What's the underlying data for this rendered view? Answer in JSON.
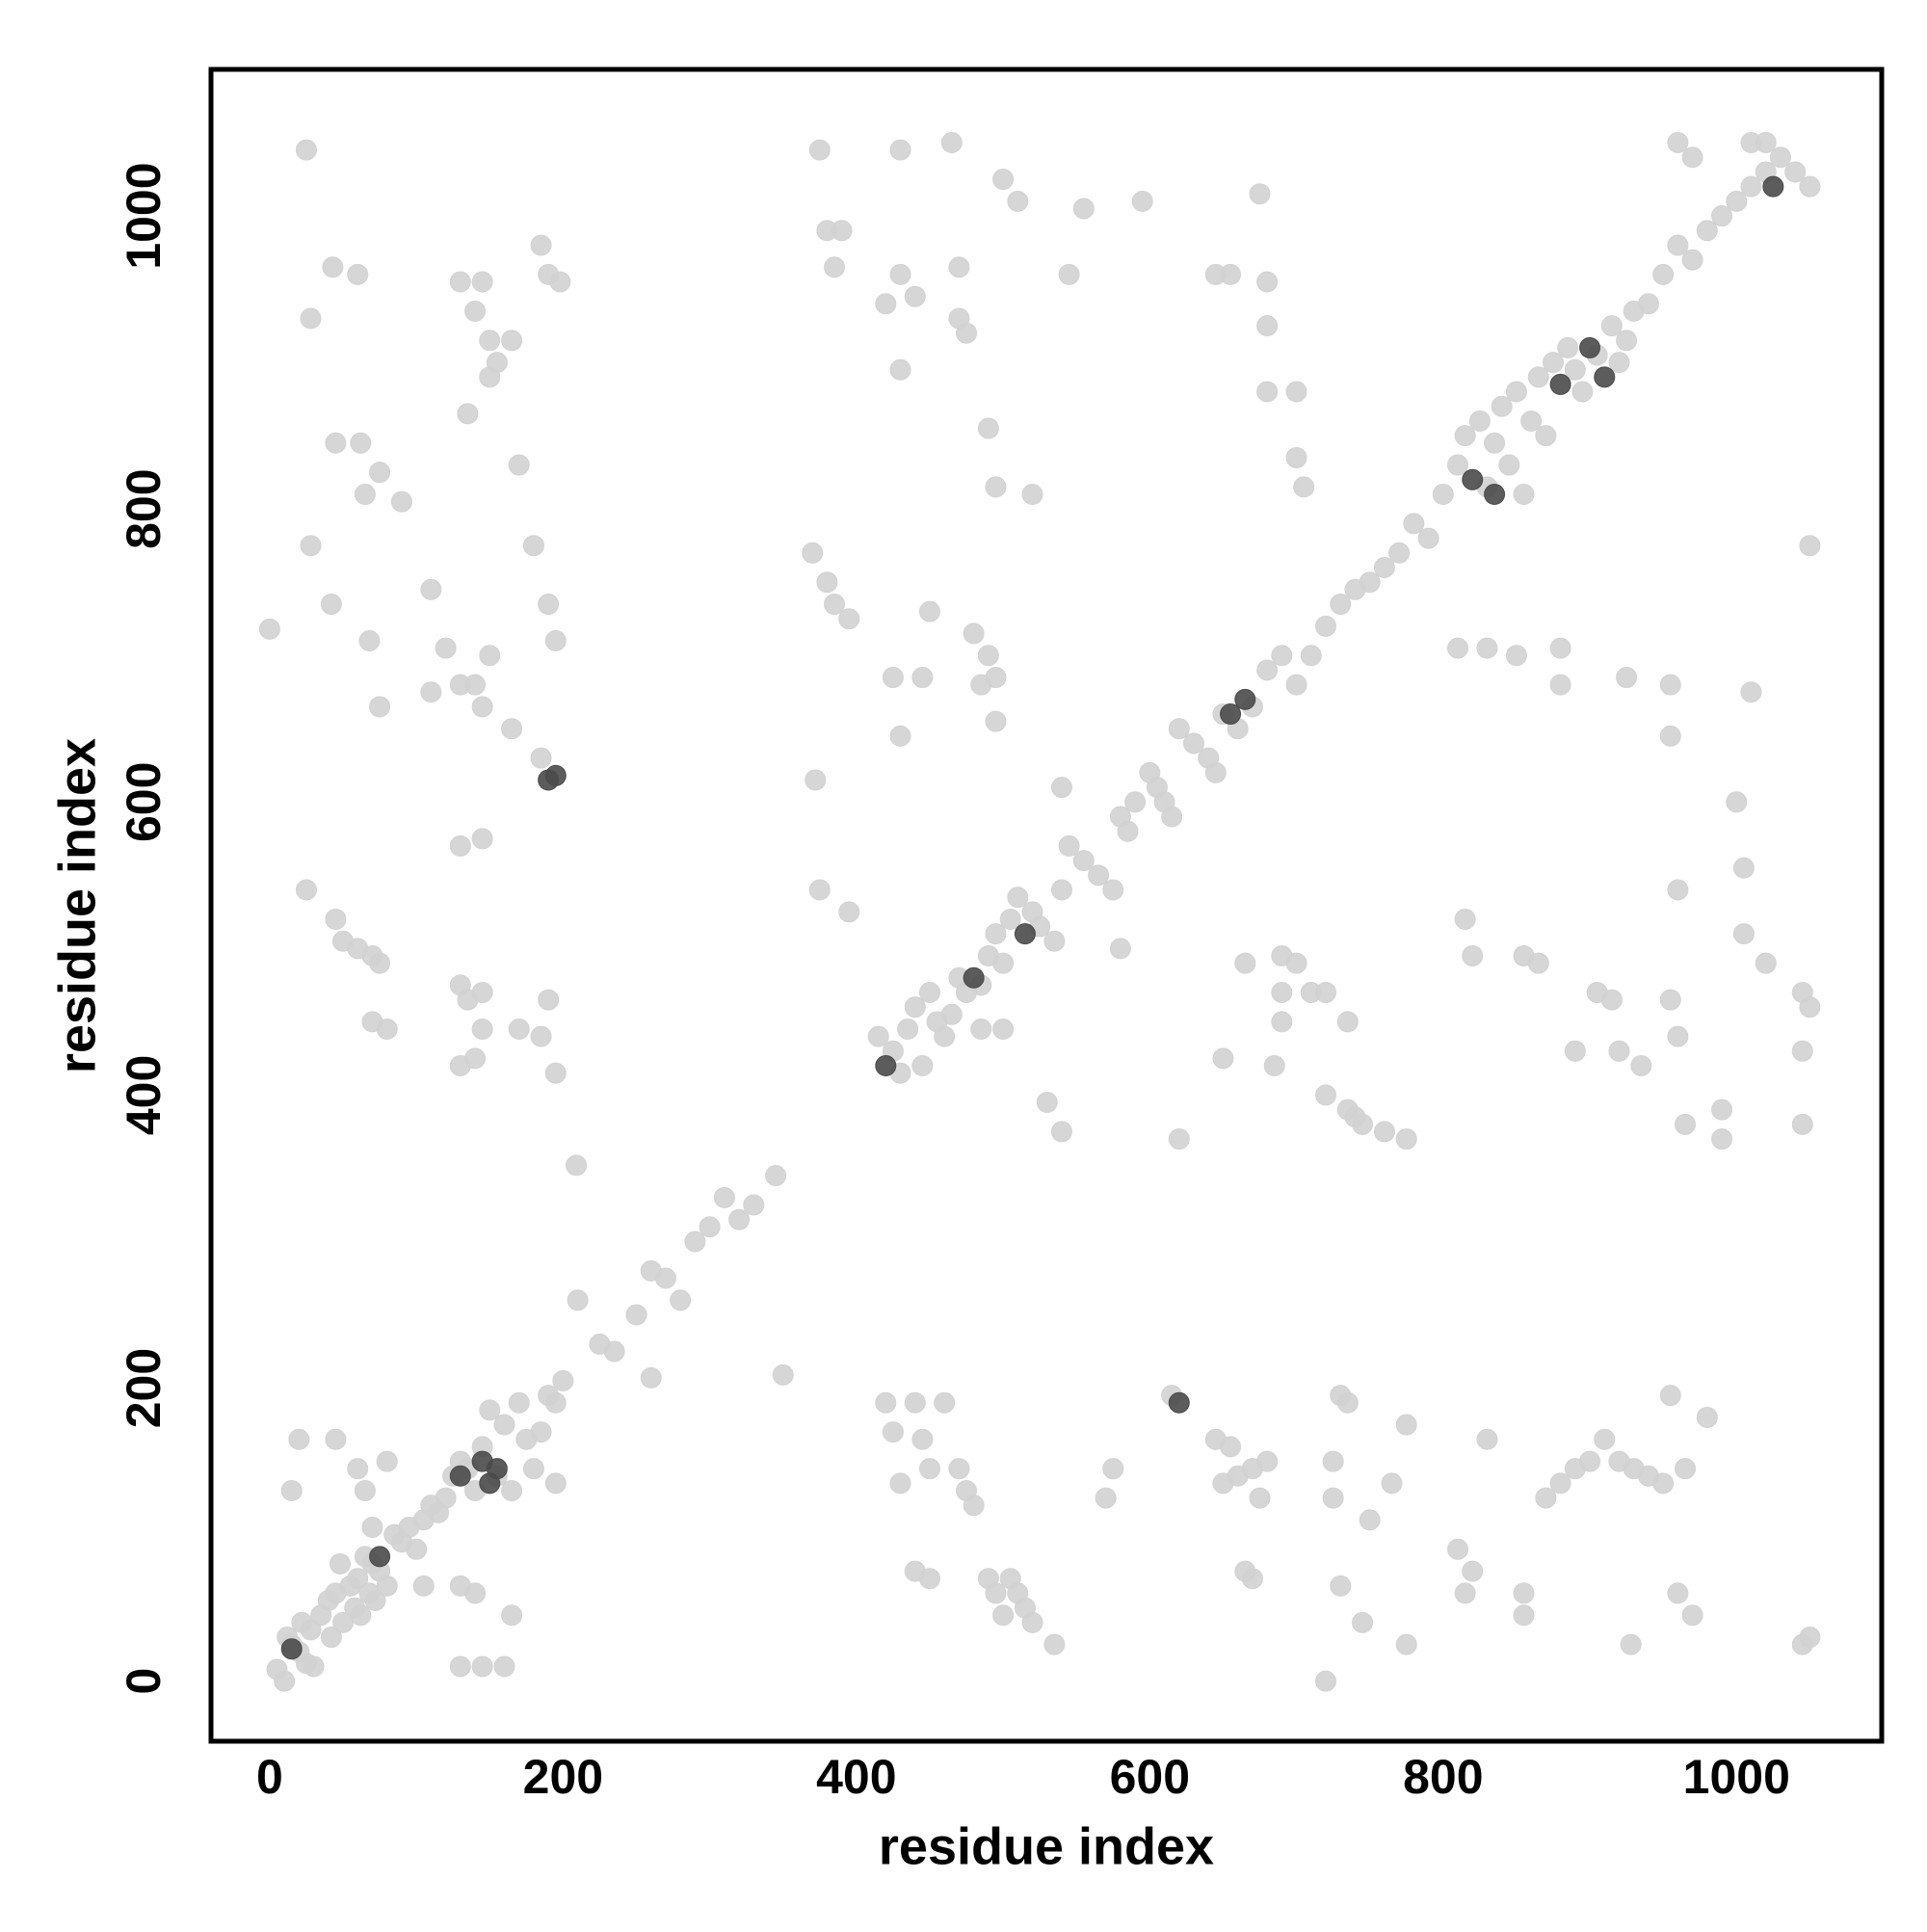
{
  "chart_data": {
    "type": "scatter",
    "xlabel": "residue index",
    "ylabel": "residue index",
    "xlim": [
      -40,
      1099
    ],
    "ylim": [
      -41,
      1100
    ],
    "xticks": [
      0,
      200,
      400,
      600,
      800,
      1000
    ],
    "yticks": [
      0,
      200,
      400,
      600,
      800,
      1000
    ],
    "grid": false,
    "series": [
      {
        "color": "#d2d2d2",
        "x": [
          5,
          10,
          12,
          15,
          20,
          22,
          25,
          28,
          30,
          35,
          40,
          42,
          45,
          48,
          50,
          55,
          58,
          60,
          62,
          65,
          68,
          70,
          72,
          75,
          80,
          85,
          90,
          95,
          100,
          105,
          110,
          115,
          120,
          125,
          130,
          135,
          140,
          145,
          150,
          155,
          160,
          165,
          170,
          175,
          180,
          185,
          190,
          195,
          200,
          210,
          225,
          235,
          250,
          260,
          270,
          280,
          290,
          300,
          310,
          320,
          330,
          345,
          350,
          415,
          425,
          430,
          435,
          440,
          445,
          450,
          455,
          460,
          465,
          470,
          475,
          485,
          490,
          495,
          500,
          505,
          510,
          520,
          525,
          535,
          540,
          540,
          545,
          555,
          565,
          575,
          580,
          585,
          590,
          600,
          605,
          610,
          615,
          620,
          630,
          640,
          645,
          650,
          660,
          670,
          680,
          690,
          700,
          710,
          720,
          730,
          740,
          750,
          760,
          770,
          780,
          790,
          800,
          810,
          815,
          825,
          830,
          835,
          840,
          845,
          850,
          855,
          860,
          865,
          870,
          875,
          885,
          890,
          895,
          905,
          915,
          920,
          925,
          930,
          940,
          950,
          960,
          970,
          980,
          990,
          1000,
          1010,
          1020,
          1030,
          1040,
          1050,
          960,
          970,
          1010,
          1020,
          25,
          28,
          43,
          60,
          28,
          45,
          62,
          65,
          75,
          90,
          130,
          145,
          140,
          150,
          135,
          150,
          155,
          165,
          170,
          180,
          185,
          190,
          198,
          0,
          42,
          68,
          75,
          110,
          120,
          130,
          140,
          145,
          150,
          165,
          185,
          130,
          145,
          25,
          45,
          50,
          60,
          70,
          75,
          70,
          80,
          130,
          135,
          145,
          130,
          140,
          145,
          170,
          185,
          190,
          195,
          110,
          190,
          195,
          375,
          380,
          390,
          385,
          370,
          380,
          385,
          395,
          372,
          375,
          395,
          420,
          430,
          440,
          430,
          425,
          430,
          445,
          450,
          470,
          470,
          475,
          465,
          430,
          480,
          490,
          495,
          485,
          495,
          490,
          495,
          500,
          510,
          520,
          545,
          555,
          595,
          645,
          655,
          680,
          680,
          675,
          680,
          700,
          700,
          705,
          810,
          830,
          850,
          880,
          880,
          925,
          955,
          955,
          1010,
          1050,
          1000,
          1005,
          1005,
          1020,
          960,
          815,
          820,
          855,
          865,
          905,
          915,
          920,
          935,
          955,
          960,
          965,
          990,
          990,
          1045,
          1050,
          1045,
          1045,
          890,
          720,
          735,
          740,
          745,
          760,
          775,
          690,
          665,
          700,
          710,
          720,
          735,
          690,
          685,
          650,
          690,
          620,
          540,
          530,
          580,
          485,
          500,
          420,
          425,
          440,
          445,
          450,
          460,
          470,
          475,
          480,
          430,
          440,
          450,
          490,
          495,
          500,
          505,
          510,
          515,
          520,
          535,
          570,
          575,
          615,
          645,
          655,
          650,
          660,
          670,
          675,
          680,
          665,
          670,
          720,
          730,
          735,
          725,
          725,
          730,
          745,
          750,
          765,
          775,
          775,
          810,
          815,
          820,
          830,
          855,
          855,
          870,
          880,
          890,
          900,
          910,
          920,
          930,
          940,
          950,
          955,
          965,
          970,
          980,
          960,
          928,
          1045,
          1050,
          15,
          20,
          45,
          60,
          65,
          70,
          80,
          105,
          130,
          140,
          145,
          160,
          165,
          195,
          260,
          130,
          209
        ],
        "values": [
          8,
          0,
          30,
          25,
          20,
          40,
          12,
          35,
          10,
          45,
          55,
          30,
          60,
          80,
          40,
          65,
          50,
          70,
          45,
          85,
          60,
          80,
          55,
          75,
          65,
          100,
          95,
          105,
          90,
          110,
          120,
          115,
          125,
          140,
          150,
          145,
          130,
          160,
          185,
          140,
          175,
          130,
          190,
          165,
          145,
          170,
          195,
          190,
          205,
          260,
          230,
          225,
          250,
          280,
          275,
          260,
          300,
          310,
          330,
          315,
          325,
          345,
          209,
          440,
          430,
          415,
          445,
          460,
          420,
          470,
          450,
          440,
          455,
          480,
          470,
          475,
          495,
          510,
          490,
          520,
          535,
          525,
          515,
          505,
          540,
          610,
          570,
          560,
          550,
          540,
          590,
          580,
          600,
          620,
          610,
          600,
          590,
          650,
          640,
          630,
          620,
          660,
          650,
          665,
          690,
          700,
          680,
          700,
          720,
          735,
          745,
          750,
          760,
          770,
          790,
          780,
          810,
          830,
          850,
          860,
          815,
          845,
          870,
          830,
          880,
          810,
          860,
          890,
          850,
          900,
          910,
          895,
          880,
          905,
          925,
          900,
          915,
          935,
          940,
          960,
          980,
          970,
          990,
          1000,
          1010,
          1020,
          1030,
          1040,
          1030,
          1020,
          1050,
          1040,
          1050,
          1050,
          1045,
          930,
          965,
          960,
          775,
          845,
          845,
          810,
          825,
          805,
          955,
          955,
          935,
          915,
          865,
          890,
          900,
          915,
          830,
          775,
          980,
          960,
          955,
          718,
          735,
          710,
          665,
          745,
          705,
          680,
          680,
          665,
          700,
          650,
          630,
          570,
          575,
          540,
          520,
          505,
          500,
          495,
          490,
          450,
          445,
          475,
          465,
          470,
          420,
          425,
          445,
          445,
          440,
          465,
          415,
          675,
          735,
          710,
          1045,
          990,
          990,
          965,
          770,
          750,
          735,
          725,
          615,
          540,
          525,
          940,
          960,
          945,
          895,
          685,
          645,
          685,
          730,
          965,
          930,
          920,
          1050,
          1045,
          715,
          700,
          685,
          680,
          655,
          855,
          815,
          1025,
          1010,
          810,
          960,
          1005,
          1010,
          960,
          960,
          955,
          925,
          1015,
          880,
          880,
          835,
          815,
          705,
          705,
          700,
          705,
          680,
          685,
          680,
          645,
          675,
          775,
          600,
          555,
          510,
          490,
          540,
          520,
          495,
          495,
          490,
          470,
          465,
          430,
          420,
          465,
          440,
          380,
          390,
          370,
          470,
          460,
          430,
          380,
          430,
          400,
          390,
          385,
          380,
          375,
          370,
          495,
          490,
          490,
          470,
          470,
          450,
          450,
          420,
          425,
          470,
          370,
          375,
          395,
          500,
          445,
          445,
          190,
          170,
          190,
          165,
          145,
          190,
          145,
          130,
          120,
          135,
          75,
          70,
          70,
          60,
          45,
          70,
          60,
          50,
          40,
          25,
          125,
          145,
          195,
          165,
          160,
          135,
          140,
          145,
          125,
          150,
          75,
          70,
          0,
          195,
          190,
          150,
          125,
          65,
          40,
          110,
          135,
          175,
          25,
          90,
          60,
          75,
          165,
          60,
          45,
          125,
          135,
          145,
          150,
          165,
          150,
          145,
          140,
          135,
          195,
          145,
          45,
          180,
          60,
          25,
          25,
          30,
          130,
          165,
          165,
          145,
          130,
          105,
          150,
          65,
          65,
          60,
          10,
          10,
          45,
          135,
          207,
          10,
          352
        ]
      },
      {
        "color": "#4a4a4a",
        "x": [
          15,
          130,
          145,
          150,
          155,
          420,
          480,
          515,
          620,
          655,
          665,
          820,
          835,
          880,
          900,
          910,
          1025,
          190,
          195,
          75
        ],
        "values": [
          22,
          140,
          150,
          135,
          145,
          420,
          480,
          510,
          190,
          660,
          670,
          820,
          810,
          885,
          910,
          890,
          1020,
          615,
          618,
          85
        ]
      }
    ]
  }
}
